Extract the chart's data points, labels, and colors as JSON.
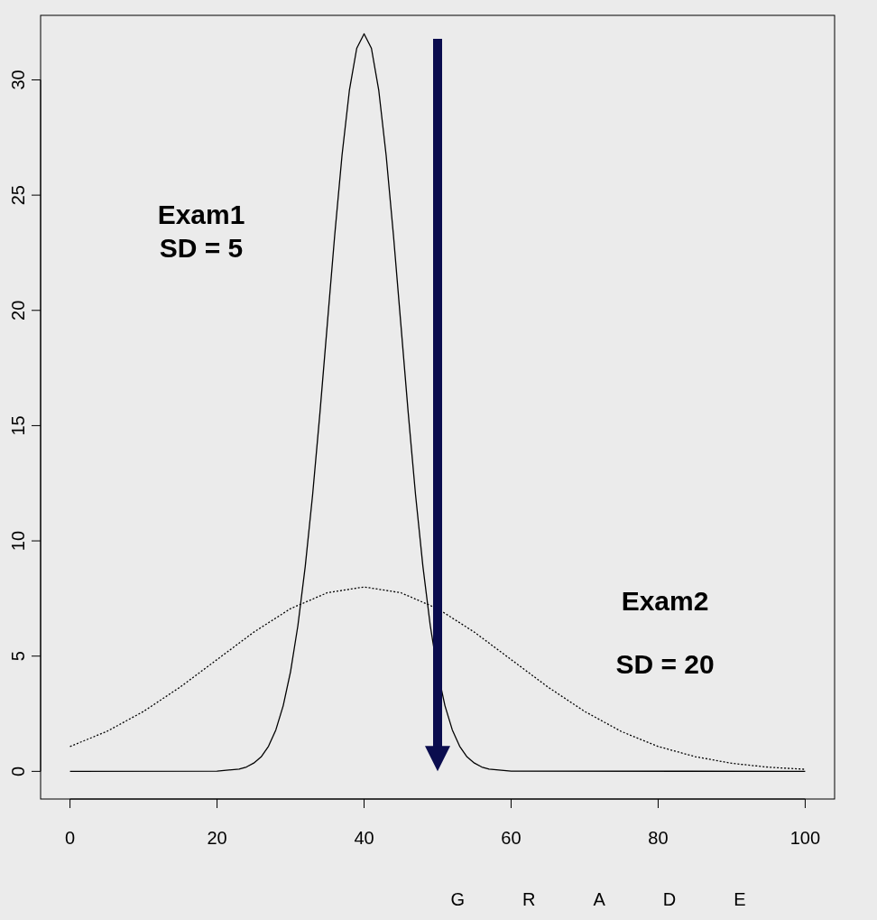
{
  "chart_data": {
    "type": "line",
    "xlabel": "GRADE",
    "xlim": [
      -4,
      104
    ],
    "ylim": [
      -1.2,
      32.8
    ],
    "xticks": [
      0,
      20,
      40,
      60,
      80,
      100
    ],
    "yticks": [
      0,
      5,
      10,
      15,
      20,
      25,
      30
    ],
    "grid": false,
    "series": [
      {
        "color": "#000000",
        "line_style": "solid",
        "x": [
          0,
          20,
          23,
          24,
          25,
          26,
          27,
          28,
          29,
          30,
          31,
          32,
          33,
          34,
          35,
          36,
          37,
          38,
          39,
          40,
          41,
          42,
          43,
          44,
          45,
          46,
          47,
          48,
          49,
          50,
          51,
          52,
          53,
          54,
          55,
          56,
          57,
          60,
          100
        ],
        "values": [
          0,
          0.01,
          0.1,
          0.19,
          0.36,
          0.63,
          1.09,
          1.8,
          2.85,
          4.33,
          6.33,
          8.9,
          12.0,
          15.57,
          19.41,
          23.24,
          26.73,
          29.54,
          31.37,
          32,
          31.37,
          29.54,
          26.73,
          23.24,
          19.41,
          15.57,
          12.0,
          8.9,
          6.33,
          4.33,
          2.85,
          1.8,
          1.09,
          0.63,
          0.36,
          0.19,
          0.1,
          0.01,
          0
        ]
      },
      {
        "color": "#000000",
        "line_style": "dotted",
        "x": [
          0,
          5,
          10,
          15,
          20,
          25,
          30,
          35,
          40,
          45,
          50,
          55,
          60,
          65,
          70,
          75,
          80,
          85,
          90,
          95,
          100
        ],
        "values": [
          1.08,
          1.73,
          2.6,
          3.66,
          4.85,
          6.04,
          7.06,
          7.75,
          8,
          7.75,
          7.06,
          6.04,
          4.85,
          3.66,
          2.6,
          1.73,
          1.08,
          0.64,
          0.35,
          0.18,
          0.09
        ]
      }
    ],
    "ref_lines": [
      {
        "axis": "x",
        "value": 50,
        "color": "#0a0c4e"
      }
    ],
    "annotations": [
      "Exam1",
      "SD = 5",
      "Exam2",
      "SD = 20"
    ]
  }
}
